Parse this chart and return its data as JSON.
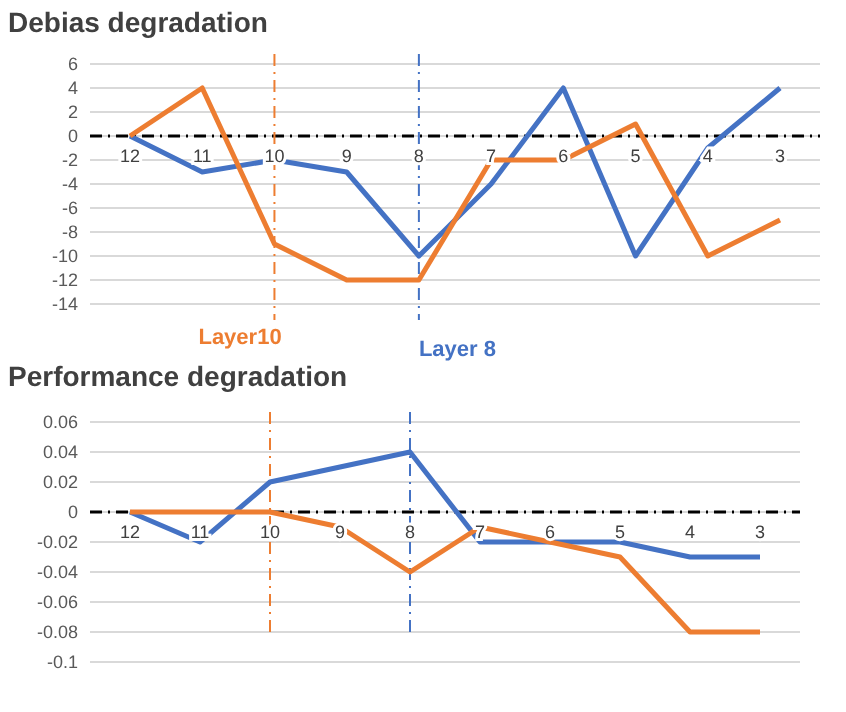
{
  "chart_data": [
    {
      "type": "line",
      "title": "Debias degradation",
      "categories": [
        "12",
        "11",
        "10",
        "9",
        "8",
        "7",
        "6",
        "5",
        "4",
        "3"
      ],
      "series": [
        {
          "color": "#4472c4",
          "values": [
            0,
            -3,
            -2,
            -3,
            -10,
            -4,
            4,
            -10,
            -1,
            4
          ]
        },
        {
          "color": "#ed7d31",
          "values": [
            0,
            4,
            -9,
            -12,
            -12,
            -2,
            -2,
            1,
            -10,
            -7
          ]
        }
      ],
      "ylim": [
        -14,
        6
      ],
      "yticks": [
        -14,
        -12,
        -10,
        -8,
        -6,
        -4,
        -2,
        0,
        2,
        4,
        6
      ],
      "grid": "y",
      "ref_lines": [
        {
          "axis": "y",
          "value": 0,
          "color": "#000000",
          "line_style": "dashed"
        },
        {
          "axis": "x",
          "value": "10",
          "label": "Layer10",
          "color": "#ed7d31",
          "line_style": "dashed"
        },
        {
          "axis": "x",
          "value": "8",
          "label": "Layer 8",
          "color": "#4472c4",
          "line_style": "dashed"
        }
      ]
    },
    {
      "type": "line",
      "title": "Performance degradation",
      "categories": [
        "12",
        "11",
        "10",
        "9",
        "8",
        "7",
        "6",
        "5",
        "4",
        "3"
      ],
      "series": [
        {
          "color": "#4472c4",
          "values": [
            0,
            -0.02,
            0.02,
            0.03,
            0.04,
            -0.02,
            -0.02,
            -0.02,
            -0.03,
            -0.03
          ]
        },
        {
          "color": "#ed7d31",
          "values": [
            0,
            0,
            0,
            -0.01,
            -0.04,
            -0.01,
            -0.02,
            -0.03,
            -0.08,
            -0.08
          ]
        }
      ],
      "ylim": [
        -0.1,
        0.06
      ],
      "yticks": [
        -0.1,
        -0.08,
        -0.06,
        -0.04,
        -0.02,
        0,
        0.02,
        0.04,
        0.06
      ],
      "grid": "y",
      "ref_lines": [
        {
          "axis": "y",
          "value": 0,
          "color": "#000000",
          "line_style": "dashed"
        },
        {
          "axis": "x",
          "value": "10",
          "color": "#ed7d31",
          "line_style": "dashed"
        },
        {
          "axis": "x",
          "value": "8",
          "color": "#4472c4",
          "line_style": "dashed"
        }
      ]
    }
  ]
}
